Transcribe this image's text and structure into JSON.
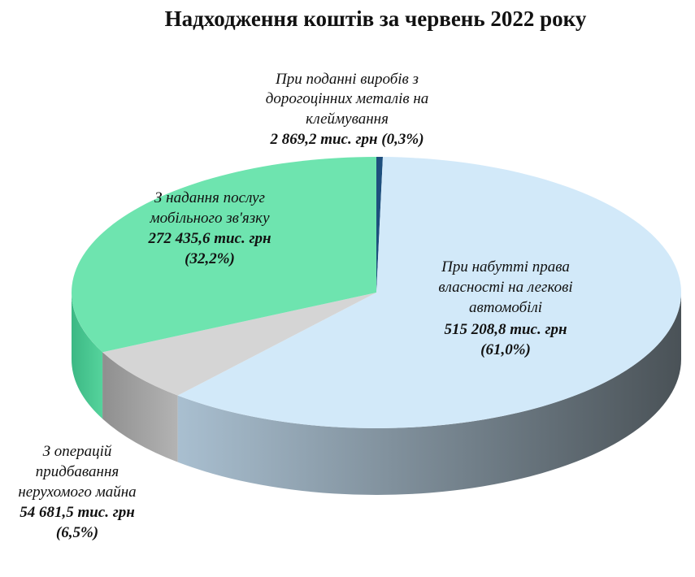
{
  "chart_data": {
    "type": "pie",
    "variant": "3d",
    "title": "Надходження коштів за червень 2022 року",
    "legend": "none",
    "slices": [
      {
        "name_lines": [
          "При поданні виробів з",
          "дорогоцінних металів на",
          "клеймування"
        ],
        "value_lines": [
          "2 869,2 тис. грн (0,3%)"
        ],
        "value": 2869.2,
        "percent": 0.3,
        "color": "#1e4f7d",
        "side_colors": [
          "#1a446c",
          "#143553"
        ]
      },
      {
        "name_lines": [
          "При набутті права",
          "власності на легкові",
          "автомобілі"
        ],
        "value_lines": [
          "515 208,8 тис. грн",
          "(61,0%)"
        ],
        "value": 515208.8,
        "percent": 61.0,
        "color": "#d2e9f9",
        "side_colors": [
          "#a9bfd0",
          "#4a5257"
        ]
      },
      {
        "name_lines": [
          "З операцій",
          "придбавання",
          "нерухомого майна"
        ],
        "value_lines": [
          "54 681,5 тис. грн",
          "(6,5%)"
        ],
        "value": 54681.5,
        "percent": 6.5,
        "color": "#d5d5d5",
        "side_colors": [
          "#8f8f8f",
          "#b3b3b3"
        ]
      },
      {
        "name_lines": [
          "З надання послуг",
          "мобільного зв'язку"
        ],
        "value_lines": [
          "272 435,6 тис. грн",
          "(32,2%)"
        ],
        "value": 272435.6,
        "percent": 32.2,
        "color": "#6ee4af",
        "side_colors": [
          "#3cb884",
          "#55d39c"
        ]
      }
    ]
  }
}
